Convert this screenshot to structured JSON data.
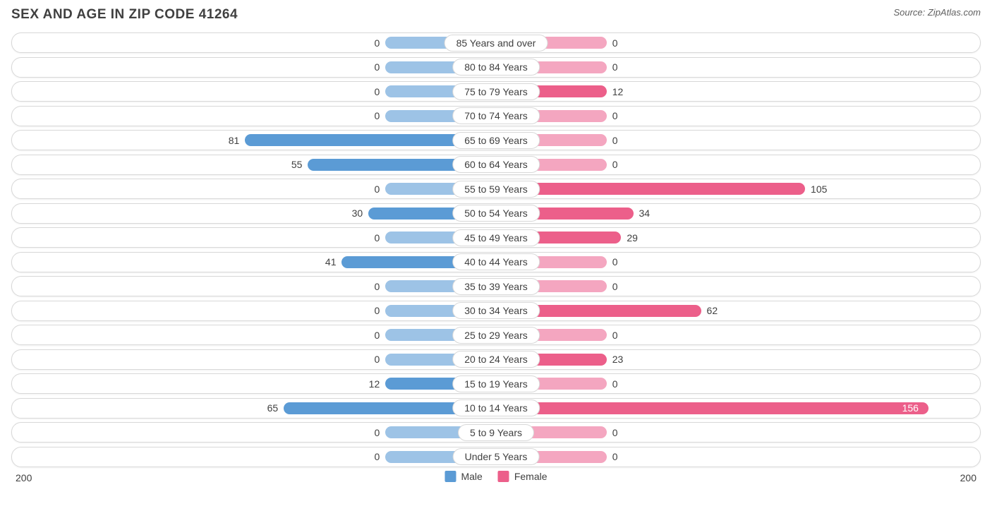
{
  "title": "SEX AND AGE IN ZIP CODE 41264",
  "source": "Source: ZipAtlas.com",
  "chart": {
    "type": "population-pyramid",
    "axis_max": 200,
    "axis_left_label": "200",
    "axis_right_label": "200",
    "min_bar_pct": 11.5,
    "label_pill_half_pct": 11.5,
    "inside_threshold": 120,
    "colors": {
      "male_min": "#9dc3e6",
      "male_big": "#5b9bd5",
      "female_min": "#f4a6c0",
      "female_big": "#ec5f8a",
      "row_border": "#d8d8d8",
      "text": "#404040",
      "background": "#ffffff"
    },
    "legend": [
      {
        "label": "Male",
        "color": "#5b9bd5"
      },
      {
        "label": "Female",
        "color": "#ec5f8a"
      }
    ],
    "rows": [
      {
        "category": "85 Years and over",
        "male": 0,
        "female": 0
      },
      {
        "category": "80 to 84 Years",
        "male": 0,
        "female": 0
      },
      {
        "category": "75 to 79 Years",
        "male": 0,
        "female": 12
      },
      {
        "category": "70 to 74 Years",
        "male": 0,
        "female": 0
      },
      {
        "category": "65 to 69 Years",
        "male": 81,
        "female": 0
      },
      {
        "category": "60 to 64 Years",
        "male": 55,
        "female": 0
      },
      {
        "category": "55 to 59 Years",
        "male": 0,
        "female": 105
      },
      {
        "category": "50 to 54 Years",
        "male": 30,
        "female": 34
      },
      {
        "category": "45 to 49 Years",
        "male": 0,
        "female": 29
      },
      {
        "category": "40 to 44 Years",
        "male": 41,
        "female": 0
      },
      {
        "category": "35 to 39 Years",
        "male": 0,
        "female": 0
      },
      {
        "category": "30 to 34 Years",
        "male": 0,
        "female": 62
      },
      {
        "category": "25 to 29 Years",
        "male": 0,
        "female": 0
      },
      {
        "category": "20 to 24 Years",
        "male": 0,
        "female": 23
      },
      {
        "category": "15 to 19 Years",
        "male": 12,
        "female": 0
      },
      {
        "category": "10 to 14 Years",
        "male": 65,
        "female": 156
      },
      {
        "category": "5 to 9 Years",
        "male": 0,
        "female": 0
      },
      {
        "category": "Under 5 Years",
        "male": 0,
        "female": 0
      }
    ]
  }
}
